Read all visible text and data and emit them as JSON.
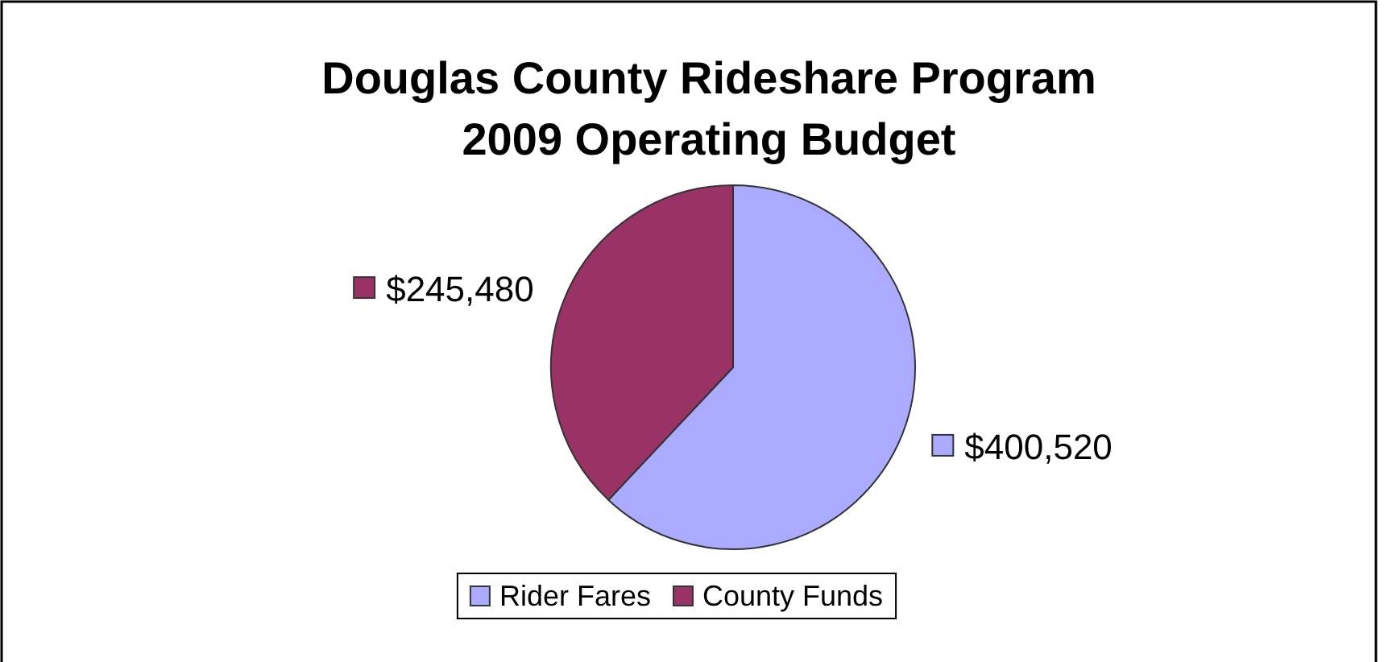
{
  "chart_data": {
    "type": "pie",
    "title": "Douglas County Rideshare Program\n2009 Operating Budget",
    "categories": [
      "Rider Fares",
      "County Funds"
    ],
    "values": [
      400520,
      245480
    ],
    "colors": [
      "#aaaaff",
      "#993366"
    ],
    "value_labels": [
      "$400,520",
      "$245,480"
    ],
    "legend": "bottom"
  }
}
